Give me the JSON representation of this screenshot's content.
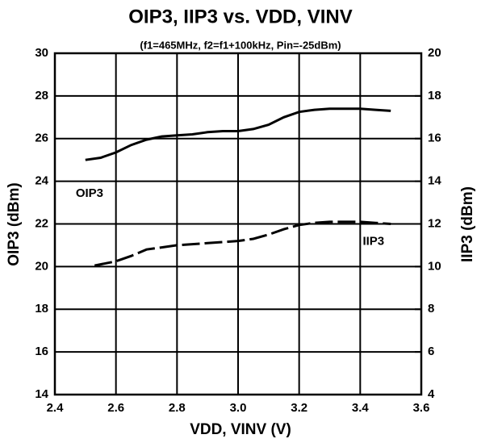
{
  "chart_data": {
    "type": "line",
    "title": "OIP3, IIP3 vs. VDD, VINV",
    "subtitle": "(f1=465MHz, f2=f1+100kHz, Pin=-25dBm)",
    "xlabel": "VDD, VINV (V)",
    "ylabel": "OIP3 (dBm)",
    "y2label": "IIP3 (dBm)",
    "xlim": [
      2.4,
      3.6
    ],
    "xticks": [
      2.4,
      2.6,
      2.8,
      {
        "value": 3,
        "label": "3.0"
      },
      3.2,
      3.4,
      3.6
    ],
    "ylim": [
      14,
      30
    ],
    "yticks": [
      14,
      16,
      18,
      20,
      22,
      24,
      26,
      28,
      30
    ],
    "y2lim": [
      4,
      20
    ],
    "y2ticks": [
      4,
      6,
      8,
      10,
      12,
      14,
      16,
      18,
      20
    ],
    "grid": true,
    "series": [
      {
        "name": "OIP3",
        "color": "#000000",
        "style": "solid",
        "x": [
          2.5,
          2.55,
          2.6,
          2.65,
          2.7,
          2.75,
          2.8,
          2.85,
          2.9,
          2.95,
          3.0,
          3.05,
          3.1,
          3.15,
          3.2,
          3.25,
          3.3,
          3.35,
          3.4,
          3.45,
          3.5
        ],
        "values": [
          25.0,
          25.1,
          25.35,
          25.7,
          25.95,
          26.1,
          26.15,
          26.2,
          26.3,
          26.35,
          26.35,
          26.45,
          26.65,
          27.0,
          27.25,
          27.35,
          27.4,
          27.4,
          27.4,
          27.35,
          27.3
        ]
      },
      {
        "name": "IIP3",
        "color": "#000000",
        "style": "dashed",
        "axis": "y2",
        "x": [
          2.53,
          2.6,
          2.65,
          2.7,
          2.75,
          2.8,
          2.85,
          2.9,
          2.95,
          3.0,
          3.05,
          3.1,
          3.15,
          3.2,
          3.25,
          3.3,
          3.35,
          3.4,
          3.45,
          3.5
        ],
        "values": [
          10.05,
          10.25,
          10.5,
          10.8,
          10.9,
          11.0,
          11.05,
          11.1,
          11.15,
          11.2,
          11.3,
          11.5,
          11.75,
          11.95,
          12.05,
          12.1,
          12.1,
          12.1,
          12.05,
          12.0
        ]
      }
    ]
  }
}
